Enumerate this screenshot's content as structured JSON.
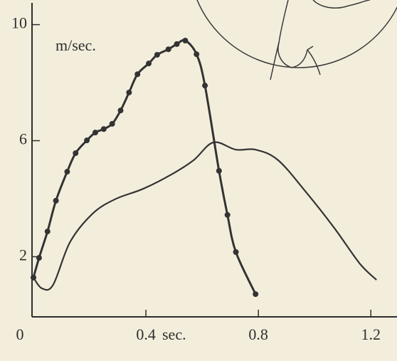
{
  "chart_data": {
    "type": "line",
    "y_label": "m/sec.",
    "x_label": "sec.",
    "xlim": [
      0,
      1.25
    ],
    "ylim": [
      0,
      10.8
    ],
    "xticks": [
      0,
      0.4,
      0.8,
      1.2
    ],
    "yticks": [
      2,
      6,
      10
    ],
    "series": [
      {
        "color": "#333333",
        "markers": true,
        "x": [
          0.0,
          0.02,
          0.05,
          0.08,
          0.12,
          0.15,
          0.19,
          0.22,
          0.25,
          0.28,
          0.31,
          0.34,
          0.37,
          0.41,
          0.44,
          0.48,
          0.51,
          0.54,
          0.58,
          0.61,
          0.66,
          0.69,
          0.72,
          0.79
        ],
        "values": [
          1.28,
          1.96,
          2.87,
          3.93,
          4.93,
          5.57,
          6.01,
          6.28,
          6.4,
          6.58,
          7.04,
          7.66,
          8.29,
          8.66,
          8.96,
          9.15,
          9.33,
          9.45,
          8.98,
          7.9,
          4.96,
          3.44,
          2.16,
          0.71
        ]
      },
      {
        "color": "#333333",
        "markers": false,
        "x": [
          0.0,
          0.03,
          0.07,
          0.13,
          0.21,
          0.29,
          0.39,
          0.49,
          0.57,
          0.64,
          0.72,
          0.79,
          0.87,
          0.97,
          1.07,
          1.16,
          1.22
        ],
        "values": [
          1.28,
          0.91,
          1.03,
          2.5,
          3.48,
          3.98,
          4.34,
          4.83,
          5.33,
          5.94,
          5.69,
          5.69,
          5.33,
          4.22,
          2.99,
          1.77,
          1.2
        ]
      }
    ]
  }
}
